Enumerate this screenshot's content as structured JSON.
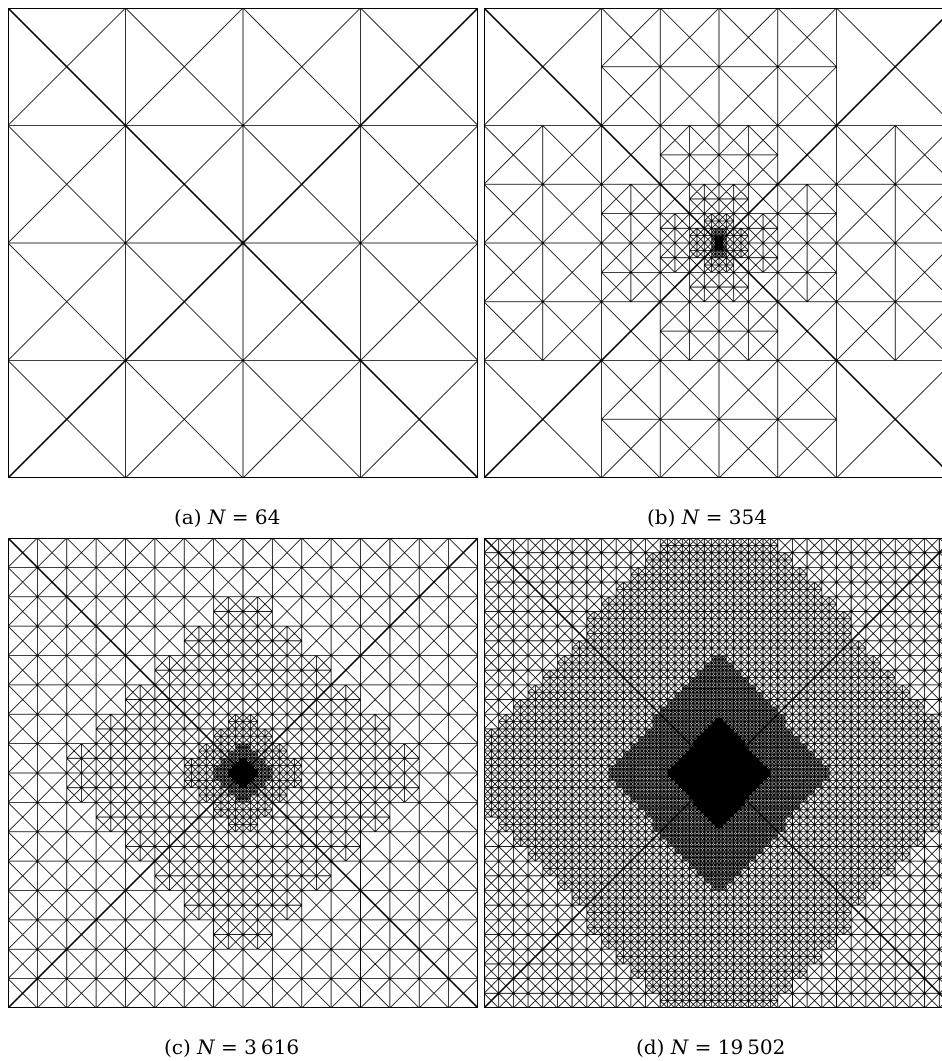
{
  "figure": {
    "panels": [
      {
        "tag": "(a)",
        "nlabel": "N",
        "eq": "=",
        "value": "64"
      },
      {
        "tag": "(b)",
        "nlabel": "N",
        "eq": "=",
        "value": "354"
      },
      {
        "tag": "(c)",
        "nlabel": "N",
        "eq": "=",
        "value": "3 616"
      },
      {
        "tag": "(d)",
        "nlabel": "N",
        "eq": "=",
        "value": "19 502"
      }
    ]
  }
}
